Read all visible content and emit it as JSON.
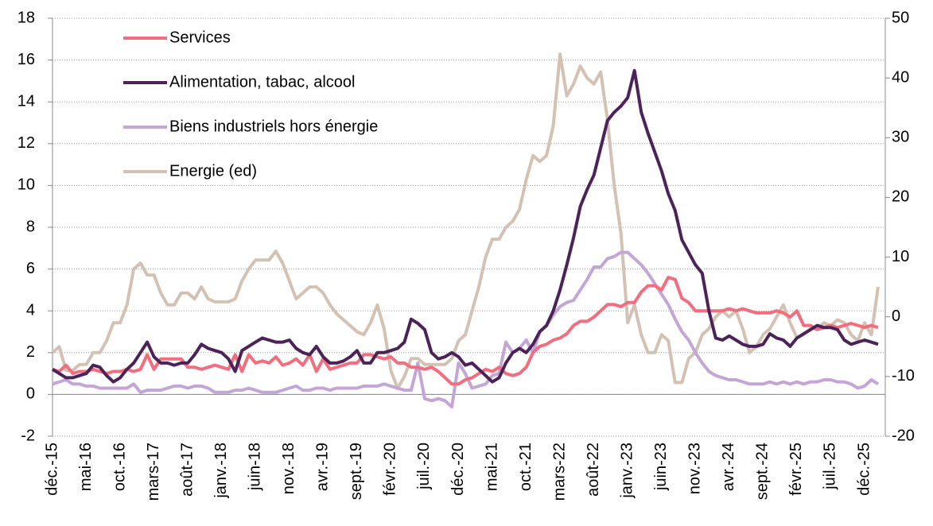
{
  "chart_data": {
    "type": "line",
    "categories": [
      "déc.-15",
      null,
      null,
      null,
      null,
      "mai-16",
      null,
      null,
      null,
      null,
      "oct.-16",
      null,
      null,
      null,
      null,
      "mars-17",
      null,
      null,
      null,
      null,
      "août-17",
      null,
      null,
      null,
      null,
      "janv.-18",
      null,
      null,
      null,
      null,
      "juin-18",
      null,
      null,
      null,
      null,
      "nov.-18",
      null,
      null,
      null,
      null,
      "avr.-19",
      null,
      null,
      null,
      null,
      "sept.-19",
      null,
      null,
      null,
      null,
      "févr.-20",
      null,
      null,
      null,
      null,
      "juil.-20",
      null,
      null,
      null,
      null,
      "déc.-20",
      null,
      null,
      null,
      null,
      "mai-21",
      null,
      null,
      null,
      null,
      "oct.-21",
      null,
      null,
      null,
      null,
      "mars-22",
      null,
      null,
      null,
      null,
      "août-22",
      null,
      null,
      null,
      null,
      "janv.-23",
      null,
      null,
      null,
      null,
      "juin-23",
      null,
      null,
      null,
      null,
      "nov.-23",
      null,
      null,
      null,
      null,
      "avr.-24",
      null,
      null,
      null,
      null,
      "sept.-24",
      null,
      null,
      null,
      null,
      "févr.-25",
      null,
      null,
      null,
      null,
      "juil.-25",
      null,
      null,
      null,
      null,
      "déc.-25",
      null,
      null
    ],
    "series": [
      {
        "name": "Services",
        "color": "#f26d7d",
        "values": [
          1.2,
          1.1,
          1.4,
          1.0,
          1.1,
          1.1,
          1.2,
          1.1,
          1.0,
          1.1,
          1.1,
          1.2,
          1.1,
          1.2,
          1.9,
          1.2,
          1.7,
          1.7,
          1.7,
          1.7,
          1.3,
          1.3,
          1.2,
          1.3,
          1.4,
          1.3,
          1.2,
          1.9,
          1.1,
          1.9,
          1.5,
          1.6,
          1.5,
          1.8,
          1.4,
          1.5,
          1.7,
          1.4,
          1.9,
          1.1,
          1.7,
          1.2,
          1.3,
          1.4,
          1.5,
          1.5,
          1.9,
          1.9,
          1.8,
          1.7,
          1.8,
          1.5,
          1.5,
          1.3,
          1.3,
          1.2,
          1.3,
          1.1,
          0.8,
          0.5,
          0.5,
          0.7,
          0.8,
          1.0,
          1.2,
          1.1,
          1.3,
          1.0,
          0.9,
          1.0,
          1.3,
          2.0,
          2.3,
          2.4,
          2.6,
          2.7,
          2.9,
          3.3,
          3.5,
          3.5,
          3.7,
          4.0,
          4.3,
          4.3,
          4.2,
          4.4,
          4.4,
          4.9,
          5.2,
          5.2,
          5.0,
          5.6,
          5.5,
          4.6,
          4.4,
          4.0,
          4.0,
          4.0,
          4.0,
          4.0,
          4.1,
          4.0,
          4.1,
          4.0,
          3.9,
          3.9,
          3.9,
          4.0,
          3.9,
          3.7,
          4.0,
          3.3,
          3.3,
          3.1,
          3.2,
          3.3,
          3.2,
          3.3,
          3.4,
          3.3,
          3.2,
          3.3,
          3.2
        ]
      },
      {
        "name": "Alimentation, tabac, alcool",
        "color": "#4b2358",
        "values": [
          1.2,
          1.0,
          0.8,
          0.8,
          0.9,
          1.0,
          1.4,
          1.3,
          0.9,
          0.6,
          0.8,
          1.2,
          1.5,
          2.0,
          2.5,
          1.8,
          1.5,
          1.5,
          1.4,
          1.5,
          1.5,
          1.9,
          2.4,
          2.2,
          2.1,
          2.0,
          1.7,
          1.1,
          2.1,
          2.3,
          2.5,
          2.7,
          2.6,
          2.5,
          2.5,
          2.6,
          2.2,
          2.0,
          1.9,
          2.3,
          1.8,
          1.5,
          1.5,
          1.6,
          1.8,
          2.1,
          1.5,
          1.5,
          2.0,
          2.0,
          2.1,
          2.2,
          2.5,
          3.6,
          3.4,
          3.1,
          2.0,
          1.7,
          1.8,
          2.0,
          1.8,
          1.4,
          1.5,
          1.2,
          0.9,
          0.6,
          0.8,
          1.5,
          2.0,
          2.2,
          2.0,
          2.4,
          3.0,
          3.3,
          4.0,
          5.0,
          6.2,
          7.5,
          9.0,
          9.8,
          10.5,
          11.8,
          13.1,
          13.5,
          13.8,
          14.2,
          15.5,
          13.5,
          12.5,
          11.6,
          10.7,
          9.6,
          8.8,
          7.4,
          6.8,
          6.2,
          5.8,
          4.0,
          2.7,
          2.6,
          2.8,
          2.6,
          2.4,
          2.3,
          2.3,
          2.4,
          2.9,
          2.7,
          2.6,
          2.3,
          2.7,
          2.9,
          3.1,
          3.3,
          3.2,
          3.2,
          3.1,
          2.6,
          2.4,
          2.5,
          2.6,
          2.5,
          2.4
        ]
      },
      {
        "name": "Biens industriels hors énergie",
        "color": "#c3a6d6",
        "values": [
          0.5,
          0.6,
          0.7,
          0.5,
          0.5,
          0.4,
          0.4,
          0.3,
          0.3,
          0.3,
          0.3,
          0.3,
          0.5,
          0.1,
          0.2,
          0.2,
          0.2,
          0.3,
          0.4,
          0.4,
          0.3,
          0.4,
          0.4,
          0.3,
          0.1,
          0.1,
          0.1,
          0.2,
          0.2,
          0.3,
          0.2,
          0.1,
          0.1,
          0.1,
          0.2,
          0.3,
          0.4,
          0.2,
          0.2,
          0.3,
          0.3,
          0.2,
          0.3,
          0.3,
          0.3,
          0.3,
          0.4,
          0.4,
          0.4,
          0.5,
          0.4,
          0.3,
          0.2,
          0.2,
          1.5,
          -0.2,
          -0.3,
          -0.2,
          -0.3,
          -0.6,
          1.5,
          1.0,
          0.3,
          0.4,
          0.5,
          0.9,
          1.0,
          2.5,
          2.0,
          2.2,
          2.6,
          2.0,
          3.0,
          3.3,
          3.8,
          4.2,
          4.4,
          4.5,
          5.0,
          5.5,
          6.1,
          6.1,
          6.5,
          6.6,
          6.8,
          6.8,
          6.5,
          6.2,
          5.8,
          5.3,
          4.8,
          4.3,
          3.6,
          3.0,
          2.6,
          2.0,
          1.5,
          1.1,
          0.9,
          0.8,
          0.7,
          0.7,
          0.6,
          0.5,
          0.5,
          0.5,
          0.6,
          0.5,
          0.6,
          0.5,
          0.6,
          0.5,
          0.6,
          0.6,
          0.7,
          0.7,
          0.6,
          0.6,
          0.5,
          0.3,
          0.4,
          0.7,
          0.5
        ]
      },
      {
        "name": "Energie (ed)",
        "color": "#d3c2b4",
        "axis": "y2",
        "values": [
          -6,
          -5,
          -9,
          -9,
          -8,
          -8,
          -6,
          -6,
          -4,
          -1,
          -1,
          2,
          8,
          9,
          7,
          7,
          4,
          2,
          2,
          4,
          4,
          3,
          5,
          3,
          2.5,
          2.5,
          2.5,
          3,
          6,
          8,
          9.5,
          9.5,
          9.5,
          11,
          9,
          6,
          3,
          4,
          5,
          5,
          4,
          2,
          0.5,
          -0.5,
          -1.5,
          -2.5,
          -3,
          -1,
          2,
          -2,
          -9,
          -12,
          -10,
          -7,
          -7,
          -8,
          -8,
          -8,
          -8,
          -7,
          -4,
          -3,
          1,
          5,
          10,
          13,
          13,
          15,
          16,
          18,
          23,
          27,
          26,
          27,
          32,
          44,
          37,
          39,
          42,
          40,
          39,
          41,
          33,
          22,
          14,
          -1,
          2,
          -3,
          -6,
          -6,
          -3,
          -4,
          -11,
          -11,
          -7,
          -6,
          -3,
          -2,
          0,
          1,
          0,
          1,
          -2,
          -6,
          -5,
          -3,
          -2,
          0,
          2,
          -1,
          -3.5,
          -3,
          -2,
          -2,
          -1,
          -1.5,
          -0.5,
          -1,
          -3,
          -4,
          -1,
          -3,
          5
        ]
      }
    ],
    "ylim": [
      -2,
      18
    ],
    "yticks": [
      -2,
      0,
      2,
      4,
      6,
      8,
      10,
      12,
      14,
      16,
      18
    ],
    "y2lim": [
      -20,
      50
    ],
    "y2ticks": [
      -20,
      -10,
      0,
      10,
      20,
      30,
      40,
      50
    ],
    "grid": true,
    "legend": "top-left"
  }
}
